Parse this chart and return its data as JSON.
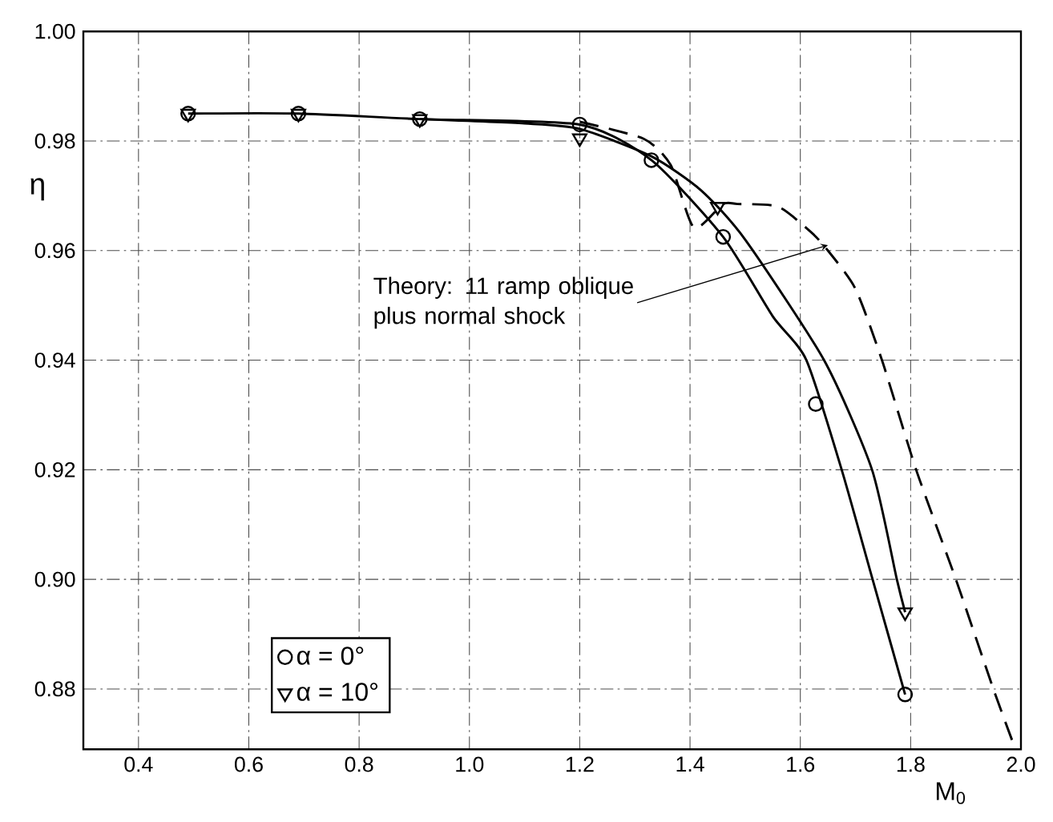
{
  "chart_data": {
    "type": "line",
    "xlabel": "M$_{0}$",
    "ylabel": "η",
    "xlim": [
      0.3,
      2.0
    ],
    "ylim": [
      0.869,
      1.0
    ],
    "xticks": [
      0.4,
      0.6,
      0.8,
      {
        "value": 1.0,
        "label": "1.0"
      },
      1.2,
      1.4,
      1.6,
      1.8,
      {
        "value": 2.0,
        "label": "2.0"
      }
    ],
    "yticks": [
      0.88,
      {
        "value": 0.9,
        "label": "0.90"
      },
      0.92,
      0.94,
      0.96,
      0.98,
      {
        "value": 1.0,
        "label": "1.00"
      }
    ],
    "grid": true,
    "legend": "bottom left",
    "series": [
      {
        "name": "α = 0°",
        "type": "scatter",
        "marker": "circle",
        "color": "#000000",
        "x": [
          0.49,
          0.69,
          0.91,
          1.2,
          1.33,
          1.46,
          1.628,
          1.79
        ],
        "values": [
          0.985,
          0.985,
          0.984,
          0.983,
          0.9765,
          0.9625,
          0.932,
          0.879
        ]
      },
      {
        "name": "α = 10°",
        "type": "scatter",
        "marker": "triangle",
        "color": "#000000",
        "x": [
          0.49,
          0.69,
          0.91,
          1.2,
          1.45,
          1.79
        ],
        "values": [
          0.985,
          0.985,
          0.984,
          0.9805,
          0.968,
          0.894
        ]
      },
      {
        "color": "#000000",
        "x": [
          0.49,
          0.69,
          0.91,
          1.2,
          1.33,
          1.46,
          1.55,
          1.611,
          1.675,
          1.731,
          1.79
        ],
        "values": [
          0.985,
          0.985,
          0.984,
          0.983,
          0.9765,
          0.9625,
          0.948,
          0.94,
          0.92,
          0.9,
          0.879
        ]
      },
      {
        "color": "#000000",
        "x": [
          0.91,
          1.1,
          1.2,
          1.33,
          1.42,
          1.5,
          1.643,
          1.73,
          1.775,
          1.79
        ],
        "values": [
          0.984,
          0.9832,
          0.9822,
          0.9772,
          0.971,
          0.962,
          0.94,
          0.92,
          0.9,
          0.894
        ]
      },
      {
        "line_style": "dashed",
        "color": "#000000",
        "x": [
          1.2,
          1.316,
          1.365,
          1.407,
          1.46,
          1.486,
          1.56,
          1.62,
          1.65,
          1.7,
          1.748,
          1.81,
          1.882,
          1.95,
          1.99
        ],
        "values": [
          0.9835,
          0.9804,
          0.9756,
          0.9642,
          0.9685,
          0.9685,
          0.968,
          0.9633,
          0.96,
          0.953,
          0.94,
          0.92,
          0.9,
          0.88,
          0.869
        ]
      }
    ],
    "annotations": [
      {
        "text": "Theory: 11 ramp oblique plus normal shock",
        "x": 1.65,
        "y": 0.961
      }
    ]
  }
}
